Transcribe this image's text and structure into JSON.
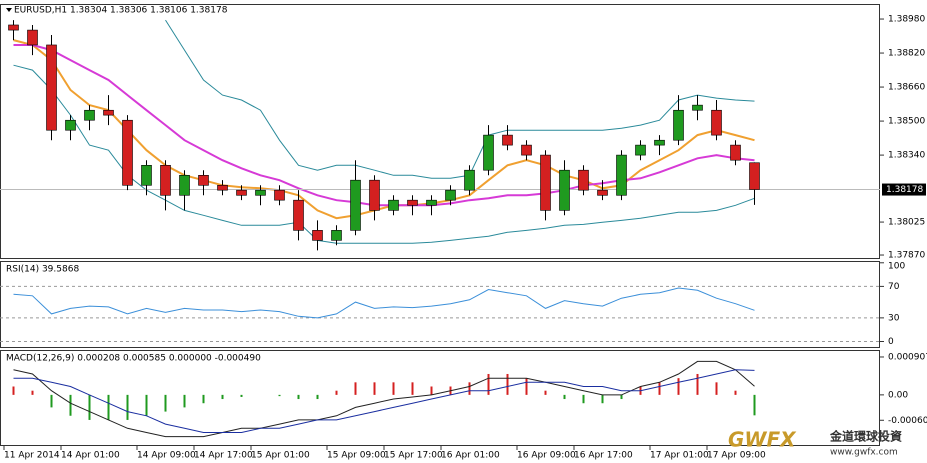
{
  "chart_data": [
    {
      "type": "candlestick",
      "title": "EURUSD,H1 1.38304 1.38306 1.38106 1.38178",
      "categories": [
        "11 Apr 2014",
        null,
        null,
        "14 Apr 01:00",
        null,
        null,
        null,
        "14 Apr 09:00",
        null,
        null,
        "14 Apr 17:00",
        null,
        null,
        "15 Apr 01:00",
        null,
        null,
        null,
        "15 Apr 09:00",
        null,
        null,
        "15 Apr 17:00",
        null,
        null,
        "16 Apr 01:00",
        null,
        null,
        null,
        "16 Apr 09:00",
        null,
        null,
        "16 Apr 17:00",
        null,
        null,
        null,
        "17 Apr 01:00",
        null,
        null,
        "17 Apr 09:00",
        null,
        null
      ],
      "open": [
        1.38952,
        1.38928,
        1.38858,
        1.38457,
        1.38504,
        1.38551,
        1.38504,
        1.38198,
        1.38292,
        1.38151,
        1.38245,
        1.38198,
        1.38175,
        1.38151,
        1.38175,
        1.38128,
        1.37986,
        1.37939,
        1.37986,
        1.38222,
        1.3808,
        1.38128,
        1.38104,
        1.38128,
        1.38175,
        1.38269,
        1.38434,
        1.38387,
        1.3834,
        1.3808,
        1.38269,
        1.38175,
        1.38151,
        1.3834,
        1.38387,
        1.3841,
        1.38551,
        1.38551,
        1.38387,
        1.38304
      ],
      "high": [
        1.38975,
        1.38952,
        1.38905,
        1.38528,
        1.38575,
        1.38622,
        1.38528,
        1.38316,
        1.38316,
        1.38269,
        1.38269,
        1.38222,
        1.38198,
        1.38198,
        1.38198,
        1.38175,
        1.38033,
        1.3801,
        1.38316,
        1.38245,
        1.38151,
        1.38151,
        1.38151,
        1.38198,
        1.38292,
        1.38481,
        1.38481,
        1.3841,
        1.38363,
        1.38316,
        1.38292,
        1.38222,
        1.38363,
        1.3841,
        1.38434,
        1.38622,
        1.38622,
        1.38599,
        1.3841,
        1.38306
      ],
      "low": [
        1.38881,
        1.3881,
        1.3841,
        1.3841,
        1.38457,
        1.38481,
        1.38175,
        1.38151,
        1.3808,
        1.3808,
        1.38151,
        1.38151,
        1.38128,
        1.38104,
        1.38104,
        1.37939,
        1.37892,
        1.37916,
        1.37963,
        1.38033,
        1.38057,
        1.38057,
        1.38057,
        1.38104,
        1.38151,
        1.38245,
        1.38363,
        1.38316,
        1.38033,
        1.38057,
        1.38151,
        1.38128,
        1.38128,
        1.38316,
        1.3834,
        1.38387,
        1.38504,
        1.3841,
        1.38292,
        1.38106
      ],
      "close": [
        1.38928,
        1.38858,
        1.38457,
        1.38504,
        1.38551,
        1.38528,
        1.38198,
        1.38292,
        1.38151,
        1.38245,
        1.38198,
        1.38175,
        1.38151,
        1.38175,
        1.38128,
        1.37986,
        1.37939,
        1.37986,
        1.38222,
        1.3808,
        1.38128,
        1.38104,
        1.38128,
        1.38175,
        1.38269,
        1.38434,
        1.38387,
        1.3834,
        1.3808,
        1.38269,
        1.38175,
        1.38151,
        1.3834,
        1.38387,
        1.3841,
        1.38551,
        1.38575,
        1.38434,
        1.38316,
        1.38178
      ],
      "up_color": "#1f9a1f",
      "down_color": "#d42020",
      "lines": [
        {
          "color": "#f0a030",
          "values": [
            1.38881,
            1.38858,
            1.38787,
            1.38646,
            1.38575,
            1.38551,
            1.38457,
            1.38363,
            1.38292,
            1.38245,
            1.38222,
            1.38198,
            1.38189,
            1.38184,
            1.38175,
            1.38151,
            1.3808,
            1.38043,
            1.38057,
            1.3808,
            1.38104,
            1.38104,
            1.38113,
            1.38128,
            1.38151,
            1.38222,
            1.38292,
            1.38316,
            1.38292,
            1.38245,
            1.38222,
            1.38184,
            1.38198,
            1.38269,
            1.38316,
            1.38363,
            1.38434,
            1.38457,
            1.38434,
            1.3841
          ]
        },
        {
          "color": "#d63ad6",
          "values": [
            1.38858,
            1.38858,
            1.38834,
            1.38787,
            1.3874,
            1.38693,
            1.38622,
            1.38551,
            1.38481,
            1.3841,
            1.38363,
            1.38316,
            1.38278,
            1.38245,
            1.38222,
            1.38184,
            1.38151,
            1.38128,
            1.38118,
            1.38104,
            1.38104,
            1.38104,
            1.38104,
            1.38113,
            1.38128,
            1.38137,
            1.38151,
            1.38151,
            1.3816,
            1.38175,
            1.38198,
            1.38208,
            1.38222,
            1.38231,
            1.38259,
            1.38292,
            1.38325,
            1.3834,
            1.38325,
            1.38316
          ]
        },
        {
          "color": "#2a8a9a",
          "values": [
            null,
            null,
            null,
            null,
            null,
            null,
            null,
            null,
            1.38975,
            1.38834,
            1.38693,
            1.38622,
            1.38599,
            1.38551,
            1.3841,
            1.38292,
            1.38269,
            1.38292,
            1.38292,
            1.38269,
            1.38245,
            1.38245,
            1.38231,
            1.38231,
            1.38245,
            1.38434,
            1.38457,
            1.38457,
            1.38457,
            1.38457,
            1.38457,
            1.38457,
            1.38466,
            1.38481,
            1.38504,
            1.38599,
            1.38622,
            1.38608,
            1.38599,
            1.38594
          ]
        },
        {
          "color": "#2a8a9a",
          "values": [
            1.38763,
            1.3874,
            1.38646,
            1.38528,
            1.38387,
            1.38363,
            1.38245,
            1.38175,
            1.38128,
            1.3808,
            1.38057,
            1.38033,
            1.3801,
            1.3801,
            1.3801,
            1.38024,
            1.37939,
            1.37925,
            1.37925,
            1.37925,
            1.37925,
            1.37925,
            1.3793,
            1.37939,
            1.37949,
            1.37958,
            1.37977,
            1.37986,
            1.37996,
            1.3801,
            1.38014,
            1.38024,
            1.38033,
            1.38043,
            1.38057,
            1.38071,
            1.38071,
            1.3808,
            1.38104,
            1.38137
          ]
        }
      ],
      "ylim": [
        1.37856,
        1.39046
      ],
      "yticks": [
        {
          "value": 1.3787,
          "label": "1.37870"
        },
        {
          "value": 1.38025,
          "label": "1.38025"
        },
        {
          "value": 1.3834,
          "label": "1.38340"
        },
        {
          "value": 1.385,
          "label": "1.38500"
        },
        {
          "value": 1.3866,
          "label": "1.38660"
        },
        {
          "value": 1.3882,
          "label": "1.38820"
        },
        {
          "value": 1.3898,
          "label": "1.38980"
        }
      ],
      "current_price": 1.38178
    },
    {
      "type": "line",
      "title": "RSI(14) 39.5868",
      "color": "#3b8fd9",
      "values": [
        60,
        58,
        35,
        42,
        45,
        44,
        35,
        42,
        37,
        42,
        40,
        40,
        38,
        40,
        38,
        32,
        30,
        35,
        50,
        42,
        44,
        43,
        45,
        48,
        53,
        66,
        62,
        58,
        42,
        52,
        48,
        45,
        55,
        60,
        62,
        68,
        65,
        55,
        48,
        39.5868
      ],
      "ylim": [
        -7,
        101
      ],
      "yticks": [
        0,
        30,
        70,
        100
      ]
    },
    {
      "type": "macd",
      "title": "MACD(12,26,9) 0.000208 0.000585 0.000000 -0.000490",
      "histogram": {
        "up_color": "#d42020",
        "down_color": "#1f9a1f",
        "values": [
          0.0002,
          0.0001,
          -0.0003,
          -0.0005,
          -0.0006,
          -0.0006,
          -0.0006,
          -0.0005,
          -0.0004,
          -0.0003,
          -0.0002,
          -0.0001,
          -5e-05,
          0,
          -3e-05,
          -0.0001,
          -0.0001,
          0.0001,
          0.0003,
          0.0003,
          0.0003,
          0.0003,
          0.0002,
          0.0002,
          0.0003,
          0.0005,
          0.0005,
          0.0004,
          0.0001,
          -0.0001,
          -0.0002,
          -0.0002,
          -0.0001,
          0.0002,
          0.0003,
          0.0004,
          0.0005,
          0.0003,
          0.0001,
          -0.00049
        ]
      },
      "lines": [
        {
          "color": "#222222",
          "values": [
            0.0006,
            0.0005,
            0.0001,
            -0.0002,
            -0.0004,
            -0.0006,
            -0.0008,
            -0.0009,
            -0.001,
            -0.001,
            -0.001,
            -0.0009,
            -0.0008,
            -0.0008,
            -0.0007,
            -0.0006,
            -0.0006,
            -0.0005,
            -0.0003,
            -0.0002,
            -0.0001,
            -5e-05,
            0,
            0.0001,
            0.0002,
            0.0004,
            0.0004,
            0.0004,
            0.0003,
            0.0002,
            0.0001,
            0,
            0,
            0.0002,
            0.0003,
            0.0005,
            0.0008,
            0.0008,
            0.0006,
            0.000208
          ]
        },
        {
          "color": "#1a2ea0",
          "values": [
            0.0004,
            0.0004,
            0.0003,
            0.0002,
            0,
            -0.0002,
            -0.0004,
            -0.0005,
            -0.0007,
            -0.0008,
            -0.0009,
            -0.0009,
            -0.0009,
            -0.0008,
            -0.0008,
            -0.0007,
            -0.0006,
            -0.0006,
            -0.0005,
            -0.0004,
            -0.0003,
            -0.0002,
            -0.0001,
            0,
            0.0001,
            0.0001,
            0.0002,
            0.0003,
            0.0003,
            0.0003,
            0.0002,
            0.0002,
            0.0001,
            0.0001,
            0.0002,
            0.0003,
            0.0004,
            0.0005,
            0.0006,
            0.000585
          ]
        }
      ],
      "ylim": [
        -0.0012,
        0.00105
      ],
      "yticks": [
        {
          "value": -0.000608,
          "label": "-0.000608"
        },
        {
          "value": 0,
          "label": "0.00"
        },
        0.000907
      ]
    }
  ],
  "watermark": {
    "brand": "GWFX",
    "name": "金道環球投資",
    "url": "www.gwfx.com"
  }
}
